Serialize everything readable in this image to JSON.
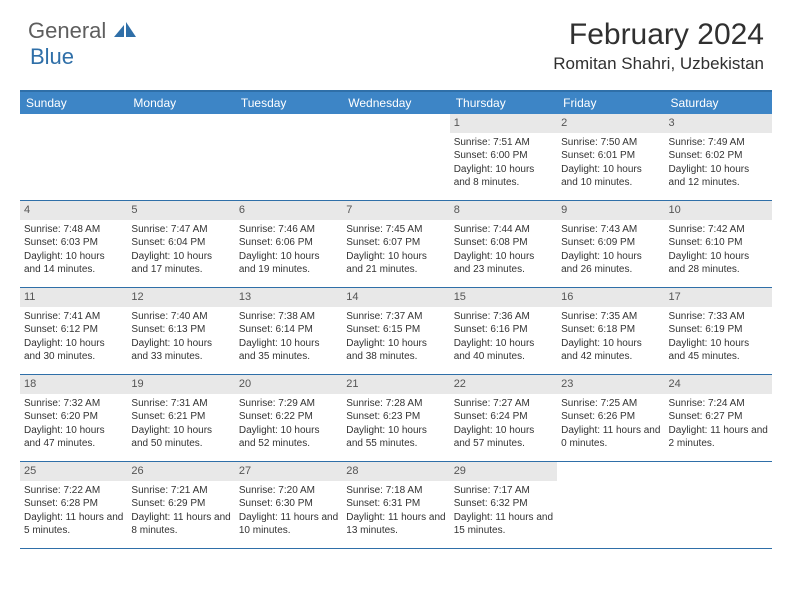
{
  "logo": {
    "part1": "General",
    "part2": "Blue"
  },
  "title": "February 2024",
  "location": "Romitan Shahri, Uzbekistan",
  "colors": {
    "header_bar": "#3d85c6",
    "border": "#2f6fa8",
    "daynum_bg": "#e8e8e8",
    "text": "#333333",
    "logo_gray": "#5e5e5e",
    "logo_blue": "#2f6fa8"
  },
  "day_headers": [
    "Sunday",
    "Monday",
    "Tuesday",
    "Wednesday",
    "Thursday",
    "Friday",
    "Saturday"
  ],
  "weeks": [
    [
      {
        "n": "",
        "sr": "",
        "ss": "",
        "dl": ""
      },
      {
        "n": "",
        "sr": "",
        "ss": "",
        "dl": ""
      },
      {
        "n": "",
        "sr": "",
        "ss": "",
        "dl": ""
      },
      {
        "n": "",
        "sr": "",
        "ss": "",
        "dl": ""
      },
      {
        "n": "1",
        "sr": "Sunrise: 7:51 AM",
        "ss": "Sunset: 6:00 PM",
        "dl": "Daylight: 10 hours and 8 minutes."
      },
      {
        "n": "2",
        "sr": "Sunrise: 7:50 AM",
        "ss": "Sunset: 6:01 PM",
        "dl": "Daylight: 10 hours and 10 minutes."
      },
      {
        "n": "3",
        "sr": "Sunrise: 7:49 AM",
        "ss": "Sunset: 6:02 PM",
        "dl": "Daylight: 10 hours and 12 minutes."
      }
    ],
    [
      {
        "n": "4",
        "sr": "Sunrise: 7:48 AM",
        "ss": "Sunset: 6:03 PM",
        "dl": "Daylight: 10 hours and 14 minutes."
      },
      {
        "n": "5",
        "sr": "Sunrise: 7:47 AM",
        "ss": "Sunset: 6:04 PM",
        "dl": "Daylight: 10 hours and 17 minutes."
      },
      {
        "n": "6",
        "sr": "Sunrise: 7:46 AM",
        "ss": "Sunset: 6:06 PM",
        "dl": "Daylight: 10 hours and 19 minutes."
      },
      {
        "n": "7",
        "sr": "Sunrise: 7:45 AM",
        "ss": "Sunset: 6:07 PM",
        "dl": "Daylight: 10 hours and 21 minutes."
      },
      {
        "n": "8",
        "sr": "Sunrise: 7:44 AM",
        "ss": "Sunset: 6:08 PM",
        "dl": "Daylight: 10 hours and 23 minutes."
      },
      {
        "n": "9",
        "sr": "Sunrise: 7:43 AM",
        "ss": "Sunset: 6:09 PM",
        "dl": "Daylight: 10 hours and 26 minutes."
      },
      {
        "n": "10",
        "sr": "Sunrise: 7:42 AM",
        "ss": "Sunset: 6:10 PM",
        "dl": "Daylight: 10 hours and 28 minutes."
      }
    ],
    [
      {
        "n": "11",
        "sr": "Sunrise: 7:41 AM",
        "ss": "Sunset: 6:12 PM",
        "dl": "Daylight: 10 hours and 30 minutes."
      },
      {
        "n": "12",
        "sr": "Sunrise: 7:40 AM",
        "ss": "Sunset: 6:13 PM",
        "dl": "Daylight: 10 hours and 33 minutes."
      },
      {
        "n": "13",
        "sr": "Sunrise: 7:38 AM",
        "ss": "Sunset: 6:14 PM",
        "dl": "Daylight: 10 hours and 35 minutes."
      },
      {
        "n": "14",
        "sr": "Sunrise: 7:37 AM",
        "ss": "Sunset: 6:15 PM",
        "dl": "Daylight: 10 hours and 38 minutes."
      },
      {
        "n": "15",
        "sr": "Sunrise: 7:36 AM",
        "ss": "Sunset: 6:16 PM",
        "dl": "Daylight: 10 hours and 40 minutes."
      },
      {
        "n": "16",
        "sr": "Sunrise: 7:35 AM",
        "ss": "Sunset: 6:18 PM",
        "dl": "Daylight: 10 hours and 42 minutes."
      },
      {
        "n": "17",
        "sr": "Sunrise: 7:33 AM",
        "ss": "Sunset: 6:19 PM",
        "dl": "Daylight: 10 hours and 45 minutes."
      }
    ],
    [
      {
        "n": "18",
        "sr": "Sunrise: 7:32 AM",
        "ss": "Sunset: 6:20 PM",
        "dl": "Daylight: 10 hours and 47 minutes."
      },
      {
        "n": "19",
        "sr": "Sunrise: 7:31 AM",
        "ss": "Sunset: 6:21 PM",
        "dl": "Daylight: 10 hours and 50 minutes."
      },
      {
        "n": "20",
        "sr": "Sunrise: 7:29 AM",
        "ss": "Sunset: 6:22 PM",
        "dl": "Daylight: 10 hours and 52 minutes."
      },
      {
        "n": "21",
        "sr": "Sunrise: 7:28 AM",
        "ss": "Sunset: 6:23 PM",
        "dl": "Daylight: 10 hours and 55 minutes."
      },
      {
        "n": "22",
        "sr": "Sunrise: 7:27 AM",
        "ss": "Sunset: 6:24 PM",
        "dl": "Daylight: 10 hours and 57 minutes."
      },
      {
        "n": "23",
        "sr": "Sunrise: 7:25 AM",
        "ss": "Sunset: 6:26 PM",
        "dl": "Daylight: 11 hours and 0 minutes."
      },
      {
        "n": "24",
        "sr": "Sunrise: 7:24 AM",
        "ss": "Sunset: 6:27 PM",
        "dl": "Daylight: 11 hours and 2 minutes."
      }
    ],
    [
      {
        "n": "25",
        "sr": "Sunrise: 7:22 AM",
        "ss": "Sunset: 6:28 PM",
        "dl": "Daylight: 11 hours and 5 minutes."
      },
      {
        "n": "26",
        "sr": "Sunrise: 7:21 AM",
        "ss": "Sunset: 6:29 PM",
        "dl": "Daylight: 11 hours and 8 minutes."
      },
      {
        "n": "27",
        "sr": "Sunrise: 7:20 AM",
        "ss": "Sunset: 6:30 PM",
        "dl": "Daylight: 11 hours and 10 minutes."
      },
      {
        "n": "28",
        "sr": "Sunrise: 7:18 AM",
        "ss": "Sunset: 6:31 PM",
        "dl": "Daylight: 11 hours and 13 minutes."
      },
      {
        "n": "29",
        "sr": "Sunrise: 7:17 AM",
        "ss": "Sunset: 6:32 PM",
        "dl": "Daylight: 11 hours and 15 minutes."
      },
      {
        "n": "",
        "sr": "",
        "ss": "",
        "dl": ""
      },
      {
        "n": "",
        "sr": "",
        "ss": "",
        "dl": ""
      }
    ]
  ]
}
